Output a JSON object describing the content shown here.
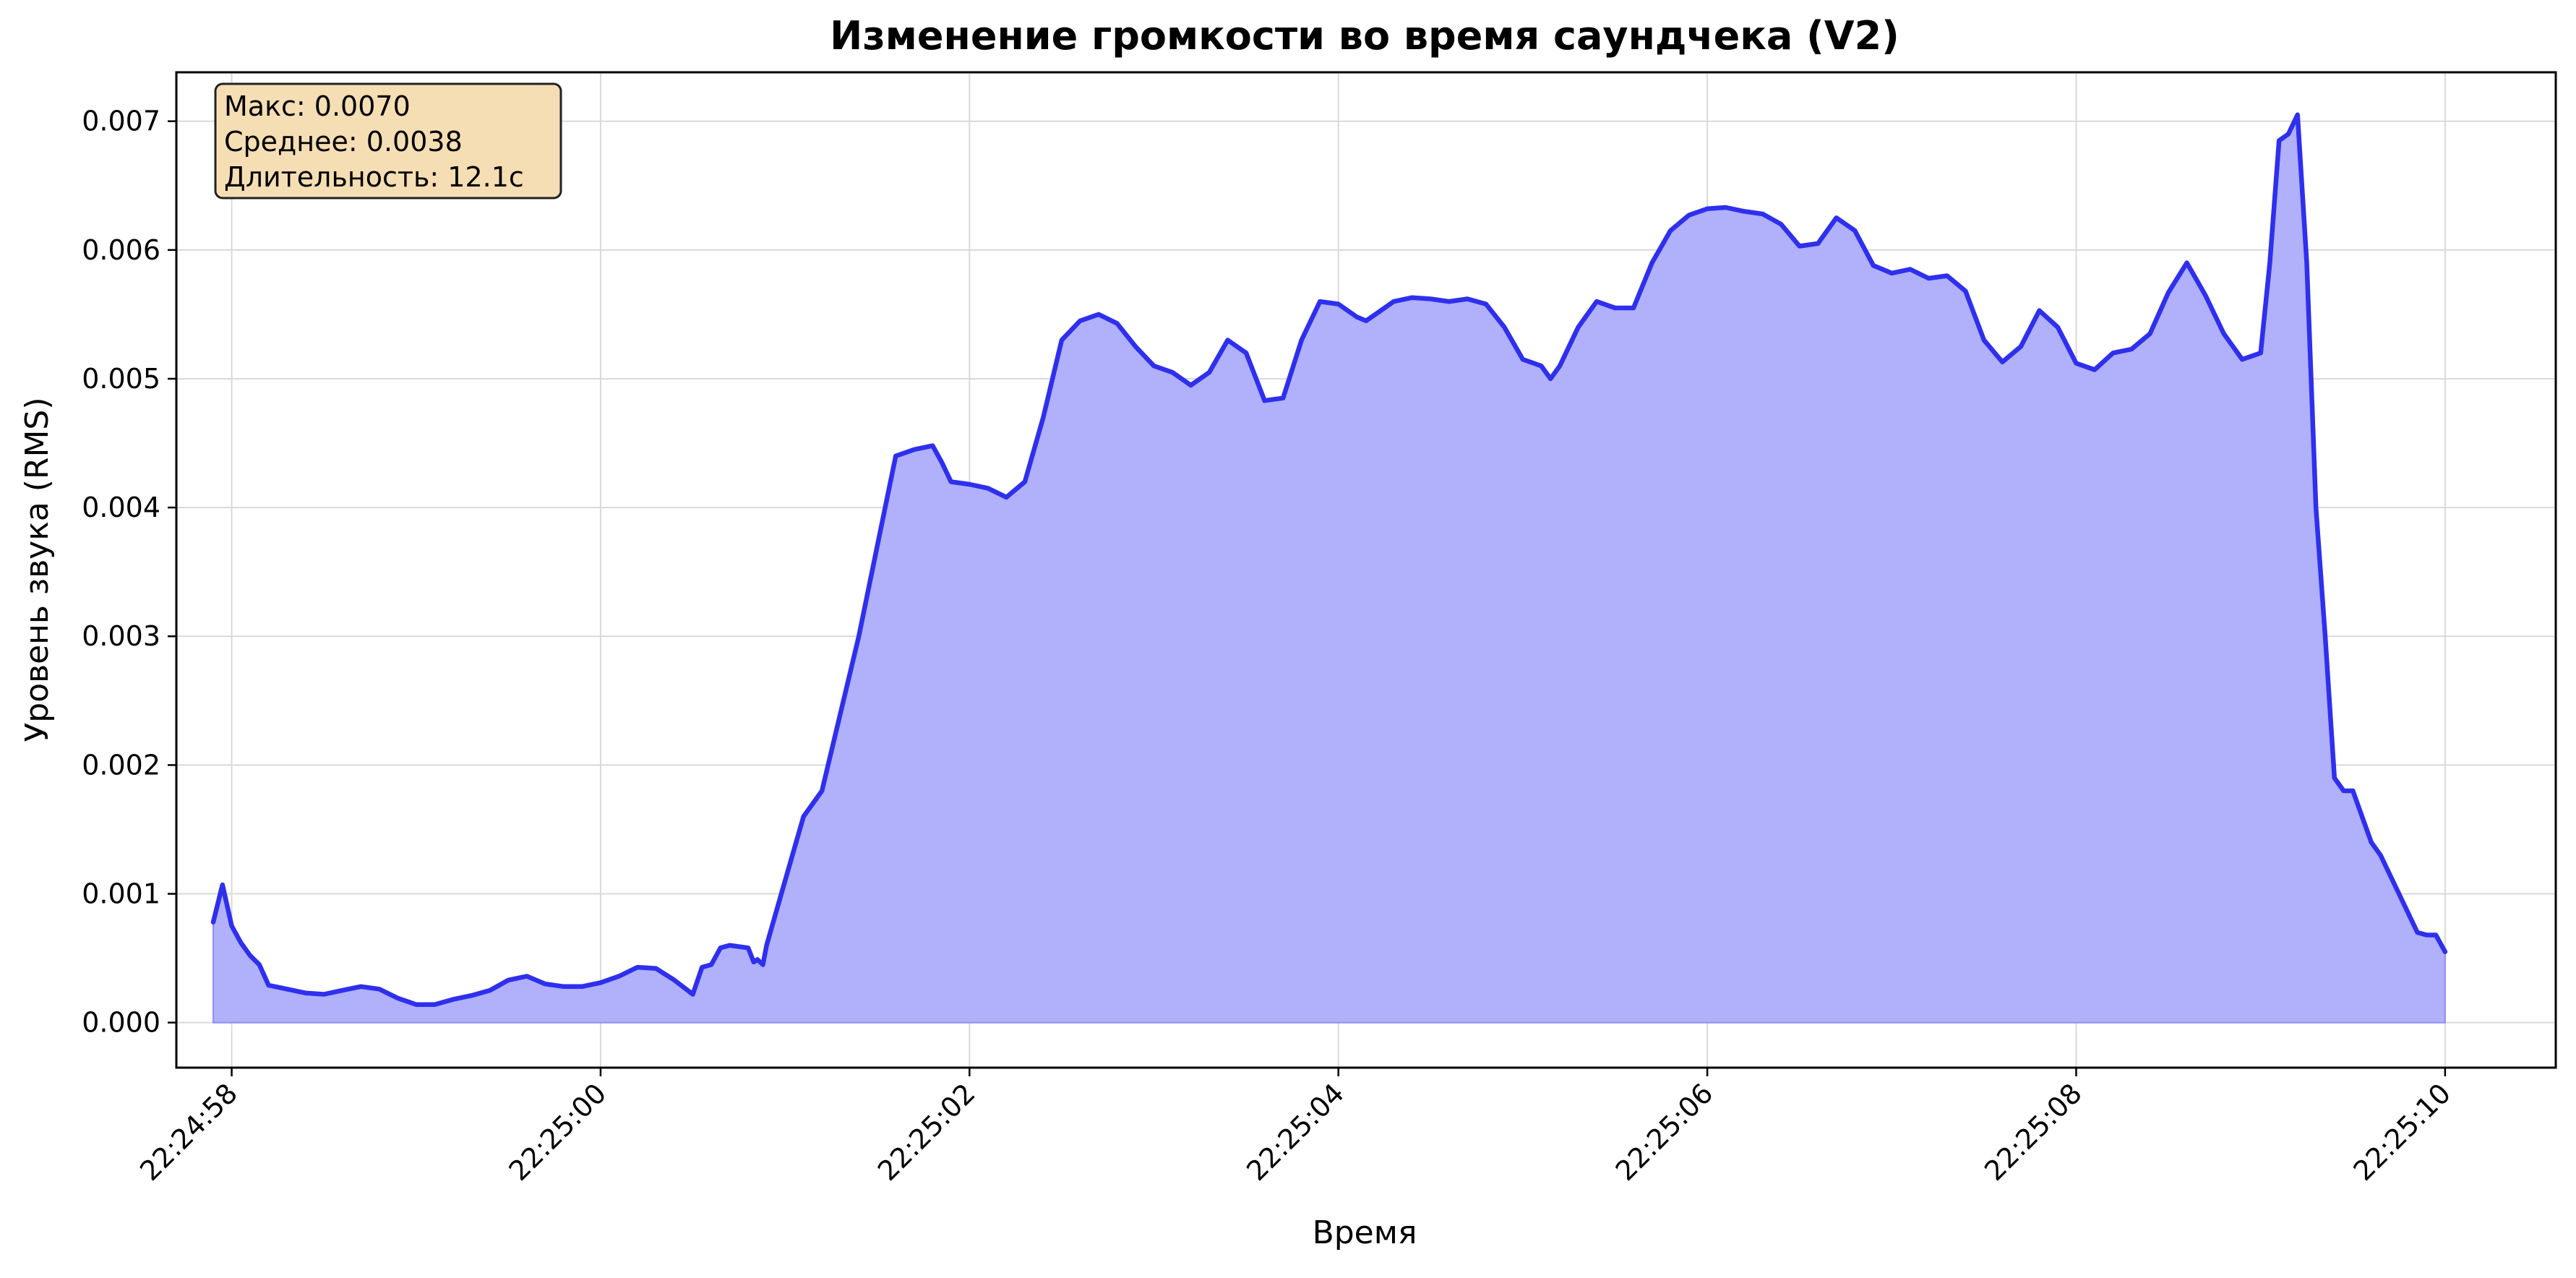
{
  "chart_data": {
    "type": "area",
    "title": "Изменение громкости во время саундчека (V2)",
    "xlabel": "Время",
    "ylabel": "Уровень звука (RMS)",
    "xlim": [
      "22:24:57.700",
      "22:25:10.600"
    ],
    "ylim": [
      -0.00035,
      0.00738
    ],
    "x_ticks": [
      "22:24:58",
      "22:25:00",
      "22:25:02",
      "22:25:04",
      "22:25:06",
      "22:25:08",
      "22:25:10"
    ],
    "y_ticks": [
      "0.000",
      "0.001",
      "0.002",
      "0.003",
      "0.004",
      "0.005",
      "0.006",
      "0.007"
    ],
    "grid": true,
    "line_color": "#2f2fee",
    "fill_color": "#b0b0fb",
    "annotation": {
      "lines": [
        "Макс: 0.0070",
        "Среднее: 0.0038",
        "Длительность: 12.1с"
      ],
      "position": "top-left",
      "background": "#f5deb3"
    },
    "series": [
      {
        "x": [
          "22:24:57.900",
          "22:24:57.950",
          "22:24:58.000",
          "22:24:58.050",
          "22:24:58.100",
          "22:24:58.150",
          "22:24:58.200",
          "22:24:58.300",
          "22:24:58.400",
          "22:24:58.500",
          "22:24:58.600",
          "22:24:58.700",
          "22:24:58.800",
          "22:24:58.900",
          "22:24:59.000",
          "22:24:59.100",
          "22:24:59.200",
          "22:24:59.300",
          "22:24:59.400",
          "22:24:59.500",
          "22:24:59.600",
          "22:24:59.700",
          "22:24:59.800",
          "22:24:59.900",
          "22:25:00.000",
          "22:25:00.100",
          "22:25:00.200",
          "22:25:00.300",
          "22:25:00.400",
          "22:25:00.500",
          "22:25:00.550",
          "22:25:00.600",
          "22:25:00.650",
          "22:25:00.700",
          "22:25:00.800",
          "22:25:00.830",
          "22:25:00.850",
          "22:25:00.880",
          "22:25:00.900",
          "22:25:01.000",
          "22:25:01.100",
          "22:25:01.200",
          "22:25:01.300",
          "22:25:01.400",
          "22:25:01.500",
          "22:25:01.600",
          "22:25:01.700",
          "22:25:01.800",
          "22:25:01.850",
          "22:25:01.900",
          "22:25:02.000",
          "22:25:02.100",
          "22:25:02.200",
          "22:25:02.300",
          "22:25:02.400",
          "22:25:02.500",
          "22:25:02.600",
          "22:25:02.700",
          "22:25:02.800",
          "22:25:02.900",
          "22:25:03.000",
          "22:25:03.100",
          "22:25:03.200",
          "22:25:03.300",
          "22:25:03.400",
          "22:25:03.500",
          "22:25:03.600",
          "22:25:03.700",
          "22:25:03.800",
          "22:25:03.900",
          "22:25:04.000",
          "22:25:04.100",
          "22:25:04.150",
          "22:25:04.200",
          "22:25:04.300",
          "22:25:04.400",
          "22:25:04.500",
          "22:25:04.600",
          "22:25:04.700",
          "22:25:04.800",
          "22:25:04.900",
          "22:25:05.000",
          "22:25:05.100",
          "22:25:05.150",
          "22:25:05.200",
          "22:25:05.300",
          "22:25:05.400",
          "22:25:05.500",
          "22:25:05.600",
          "22:25:05.700",
          "22:25:05.800",
          "22:25:05.900",
          "22:25:06.000",
          "22:25:06.100",
          "22:25:06.200",
          "22:25:06.300",
          "22:25:06.400",
          "22:25:06.500",
          "22:25:06.600",
          "22:25:06.700",
          "22:25:06.800",
          "22:25:06.900",
          "22:25:07.000",
          "22:25:07.100",
          "22:25:07.200",
          "22:25:07.300",
          "22:25:07.400",
          "22:25:07.500",
          "22:25:07.600",
          "22:25:07.700",
          "22:25:07.800",
          "22:25:07.900",
          "22:25:08.000",
          "22:25:08.100",
          "22:25:08.200",
          "22:25:08.300",
          "22:25:08.400",
          "22:25:08.500",
          "22:25:08.600",
          "22:25:08.700",
          "22:25:08.800",
          "22:25:08.900",
          "22:25:09.000",
          "22:25:09.050",
          "22:25:09.100",
          "22:25:09.150",
          "22:25:09.200",
          "22:25:09.250",
          "22:25:09.300",
          "22:25:09.350",
          "22:25:09.400",
          "22:25:09.450",
          "22:25:09.500",
          "22:25:09.550",
          "22:25:09.600",
          "22:25:09.650",
          "22:25:09.700",
          "22:25:09.750",
          "22:25:09.800",
          "22:25:09.850",
          "22:25:09.900",
          "22:25:09.950",
          "22:25:10.000"
        ],
        "y": [
          0.00078,
          0.00107,
          0.00075,
          0.00062,
          0.00052,
          0.00045,
          0.00029,
          0.00026,
          0.00023,
          0.00022,
          0.00025,
          0.00028,
          0.00026,
          0.00019,
          0.00014,
          0.00014,
          0.00018,
          0.00021,
          0.00025,
          0.00033,
          0.00036,
          0.0003,
          0.00028,
          0.00028,
          0.00031,
          0.00036,
          0.00043,
          0.00042,
          0.00033,
          0.00022,
          0.00043,
          0.00045,
          0.00058,
          0.0006,
          0.00058,
          0.00047,
          0.00049,
          0.00045,
          0.0006,
          0.0011,
          0.0016,
          0.0018,
          0.0024,
          0.003,
          0.0037,
          0.0044,
          0.00445,
          0.00448,
          0.00435,
          0.0042,
          0.00418,
          0.00415,
          0.00408,
          0.0042,
          0.0047,
          0.0053,
          0.00545,
          0.0055,
          0.00543,
          0.00525,
          0.0051,
          0.00505,
          0.00495,
          0.00505,
          0.0053,
          0.0052,
          0.00483,
          0.00485,
          0.0053,
          0.0056,
          0.00558,
          0.00548,
          0.00545,
          0.0055,
          0.0056,
          0.00563,
          0.00562,
          0.0056,
          0.00562,
          0.00558,
          0.0054,
          0.00515,
          0.0051,
          0.005,
          0.0051,
          0.0054,
          0.0056,
          0.00555,
          0.00555,
          0.0059,
          0.00615,
          0.00627,
          0.00632,
          0.00633,
          0.0063,
          0.00628,
          0.0062,
          0.00603,
          0.00605,
          0.00625,
          0.00615,
          0.00588,
          0.00582,
          0.00585,
          0.00578,
          0.0058,
          0.00568,
          0.0053,
          0.00513,
          0.00525,
          0.00553,
          0.0054,
          0.00512,
          0.00507,
          0.0052,
          0.00523,
          0.00535,
          0.00567,
          0.0059,
          0.00565,
          0.00535,
          0.00515,
          0.0052,
          0.0059,
          0.00685,
          0.0069,
          0.00705,
          0.0059,
          0.004,
          0.003,
          0.0019,
          0.0018,
          0.0018,
          0.0016,
          0.0014,
          0.0013,
          0.00115,
          0.001,
          0.00085,
          0.0007,
          0.00068,
          0.00068,
          0.00055
        ]
      }
    ]
  }
}
